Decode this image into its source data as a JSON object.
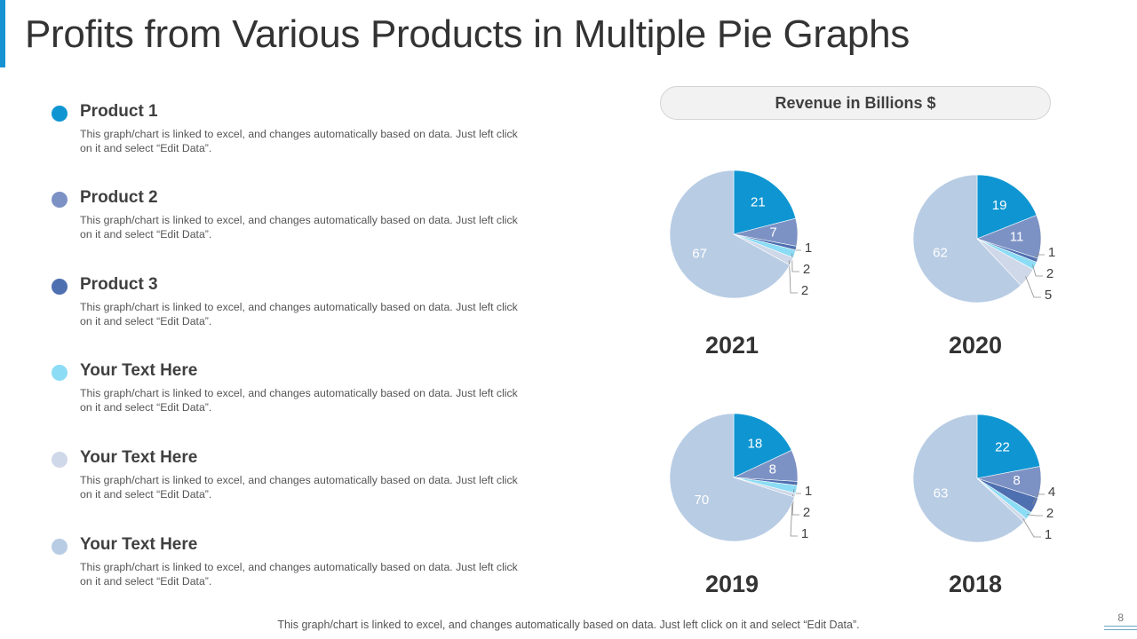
{
  "title": "Profits from Various Products in Multiple Pie Graphs",
  "colors": {
    "accent": "#1592d1",
    "product1": "#0f96d2",
    "product2": "#7d92c4",
    "product3": "#4e6fb0",
    "text4": "#8cdcf5",
    "text5": "#cfd8e8",
    "text6": "#b8cce4"
  },
  "legend": [
    {
      "label": "Product 1",
      "color": "#0f96d2",
      "description": "This graph/chart is linked to excel, and changes automatically based on data. Just left click on it and select “Edit Data”."
    },
    {
      "label": "Product 2",
      "color": "#7d92c4",
      "description": "This graph/chart is linked to excel, and changes automatically based on data. Just left click on it and select “Edit Data”."
    },
    {
      "label": "Product 3",
      "color": "#4e6fb0",
      "description": "This graph/chart is linked to excel, and changes automatically based on data. Just left click on it and select “Edit Data”."
    },
    {
      "label": "Your Text Here",
      "color": "#8cdcf5",
      "description": "This graph/chart is linked to excel, and changes automatically based on data. Just left click on it and select “Edit Data”."
    },
    {
      "label": "Your Text Here",
      "color": "#cfd8e8",
      "description": "This graph/chart is linked to excel, and changes automatically based on data. Just left click on it and select “Edit Data”."
    },
    {
      "label": "Your Text Here",
      "color": "#b8cce4",
      "description": "This graph/chart is linked to excel, and changes automatically based on data. Just left click on it and select “Edit Data”."
    }
  ],
  "revenue_label": "Revenue in Billions $",
  "chart_data": [
    {
      "type": "pie",
      "title": "2021",
      "categories": [
        "Product 1",
        "Product 2",
        "Product 3",
        "Your Text Here",
        "Your Text Here",
        "Your Text Here"
      ],
      "values": [
        21,
        7,
        1,
        2,
        2,
        67
      ]
    },
    {
      "type": "pie",
      "title": "2020",
      "categories": [
        "Product 1",
        "Product 2",
        "Product 3",
        "Your Text Here",
        "Your Text Here",
        "Your Text Here"
      ],
      "values": [
        19,
        11,
        1,
        2,
        5,
        62
      ]
    },
    {
      "type": "pie",
      "title": "2019",
      "categories": [
        "Product 1",
        "Product 2",
        "Product 3",
        "Your Text Here",
        "Your Text Here",
        "Your Text Here"
      ],
      "values": [
        18,
        8,
        1,
        2,
        1,
        70
      ]
    },
    {
      "type": "pie",
      "title": "2018",
      "categories": [
        "Product 1",
        "Product 2",
        "Product 3",
        "Your Text Here",
        "Your Text Here",
        "Your Text Here"
      ],
      "values": [
        22,
        8,
        4,
        2,
        1,
        63
      ]
    }
  ],
  "footer_note": "This graph/chart is linked to excel, and changes automatically based on data. Just left click on it and select “Edit Data”.",
  "page_number": "8"
}
